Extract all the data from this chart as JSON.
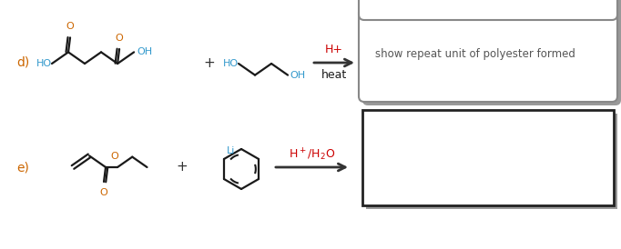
{
  "bg_color": "#ffffff",
  "label_d_color": "#cc6600",
  "label_e_color": "#cc6600",
  "bond_color": "#1a1a1a",
  "oxygen_color": "#cc6600",
  "blue_color": "#3399cc",
  "hplus_color": "#cc0000",
  "box_text_color": "#555555",
  "box_d_text": "show repeat unit of polyester formed",
  "label_d": "d)",
  "label_e": "e)",
  "hplus_label": "H+",
  "heat_label": "heat",
  "arrow_color": "#333333",
  "plus_color": "#333333",
  "shadow_color": "#999999",
  "box_edge_color": "#888888",
  "box_e_edge_color": "#222222"
}
